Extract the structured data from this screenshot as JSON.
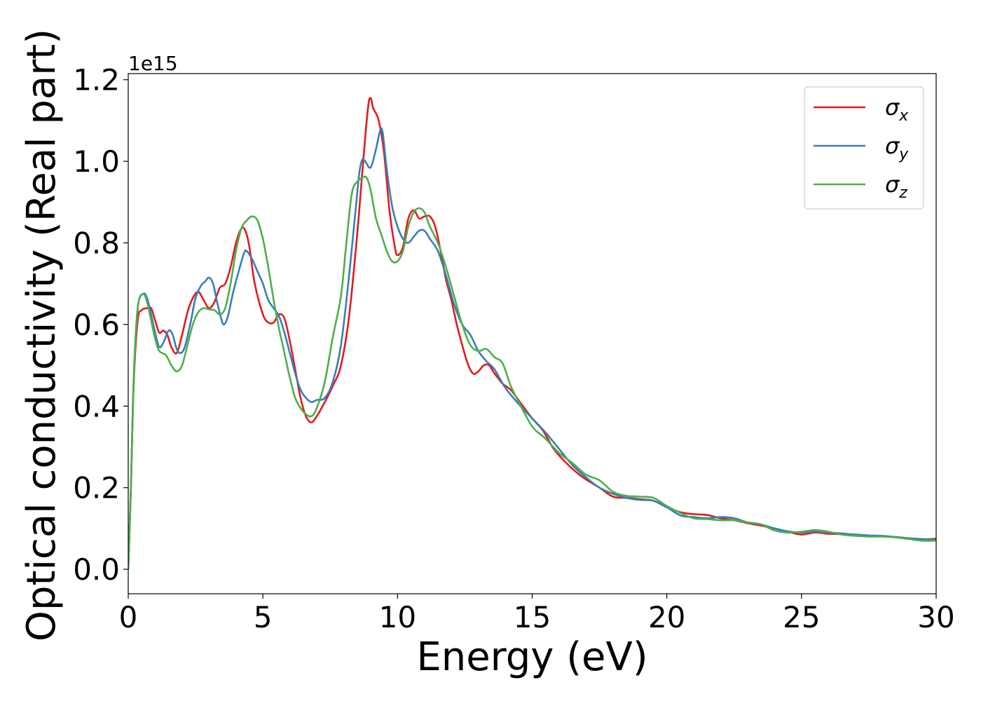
{
  "chart_data": {
    "type": "line",
    "xlabel": "Energy (eV)",
    "ylabel": "Optical conductivity (Real part)",
    "y_offset_text": "1e15",
    "xlim": [
      0,
      30
    ],
    "ylim": [
      -0.06,
      1.215
    ],
    "x_ticks": [
      0,
      5,
      10,
      15,
      20,
      25,
      30
    ],
    "x_tick_labels": [
      "0",
      "5",
      "10",
      "15",
      "20",
      "25",
      "30"
    ],
    "y_ticks": [
      0.0,
      0.2,
      0.4,
      0.6,
      0.8,
      1.0,
      1.2
    ],
    "y_tick_labels": [
      "0.0",
      "0.2",
      "0.4",
      "0.6",
      "0.8",
      "1.0",
      "1.2"
    ],
    "grid": false,
    "legend_position": "top-right",
    "series": [
      {
        "name": "σx",
        "symbol": "σ",
        "subscript": "x",
        "color": "#e41a1c",
        "points": [
          [
            0,
            0
          ],
          [
            0.1,
            0.2
          ],
          [
            0.2,
            0.45
          ],
          [
            0.35,
            0.61
          ],
          [
            0.5,
            0.635
          ],
          [
            0.7,
            0.64
          ],
          [
            0.85,
            0.64
          ],
          [
            1.0,
            0.61
          ],
          [
            1.15,
            0.58
          ],
          [
            1.3,
            0.585
          ],
          [
            1.45,
            0.575
          ],
          [
            1.6,
            0.545
          ],
          [
            1.8,
            0.53
          ],
          [
            2.0,
            0.575
          ],
          [
            2.2,
            0.63
          ],
          [
            2.4,
            0.665
          ],
          [
            2.6,
            0.68
          ],
          [
            2.8,
            0.66
          ],
          [
            3.0,
            0.64
          ],
          [
            3.2,
            0.655
          ],
          [
            3.4,
            0.69
          ],
          [
            3.6,
            0.7
          ],
          [
            3.8,
            0.74
          ],
          [
            4.0,
            0.8
          ],
          [
            4.2,
            0.835
          ],
          [
            4.35,
            0.83
          ],
          [
            4.5,
            0.79
          ],
          [
            4.7,
            0.7
          ],
          [
            5.0,
            0.625
          ],
          [
            5.2,
            0.605
          ],
          [
            5.4,
            0.605
          ],
          [
            5.6,
            0.625
          ],
          [
            5.8,
            0.615
          ],
          [
            6.0,
            0.56
          ],
          [
            6.2,
            0.49
          ],
          [
            6.4,
            0.42
          ],
          [
            6.6,
            0.375
          ],
          [
            6.8,
            0.36
          ],
          [
            7.0,
            0.375
          ],
          [
            7.3,
            0.41
          ],
          [
            7.6,
            0.45
          ],
          [
            7.9,
            0.5
          ],
          [
            8.2,
            0.62
          ],
          [
            8.5,
            0.82
          ],
          [
            8.7,
            0.98
          ],
          [
            8.9,
            1.13
          ],
          [
            9.0,
            1.155
          ],
          [
            9.1,
            1.13
          ],
          [
            9.3,
            1.1
          ],
          [
            9.5,
            1.02
          ],
          [
            9.7,
            0.88
          ],
          [
            9.9,
            0.79
          ],
          [
            10.0,
            0.77
          ],
          [
            10.2,
            0.79
          ],
          [
            10.4,
            0.86
          ],
          [
            10.6,
            0.88
          ],
          [
            10.8,
            0.86
          ],
          [
            11.0,
            0.865
          ],
          [
            11.2,
            0.865
          ],
          [
            11.4,
            0.84
          ],
          [
            11.6,
            0.78
          ],
          [
            11.8,
            0.71
          ],
          [
            12.0,
            0.66
          ],
          [
            12.2,
            0.6
          ],
          [
            12.4,
            0.55
          ],
          [
            12.6,
            0.505
          ],
          [
            12.8,
            0.48
          ],
          [
            13.0,
            0.485
          ],
          [
            13.2,
            0.5
          ],
          [
            13.4,
            0.5
          ],
          [
            13.6,
            0.48
          ],
          [
            13.9,
            0.455
          ],
          [
            14.2,
            0.44
          ],
          [
            14.6,
            0.405
          ],
          [
            15.0,
            0.37
          ],
          [
            15.4,
            0.34
          ],
          [
            15.8,
            0.295
          ],
          [
            16.2,
            0.265
          ],
          [
            16.6,
            0.24
          ],
          [
            17.0,
            0.22
          ],
          [
            17.5,
            0.2
          ],
          [
            18.0,
            0.178
          ],
          [
            18.5,
            0.175
          ],
          [
            19.0,
            0.172
          ],
          [
            19.5,
            0.168
          ],
          [
            20.0,
            0.152
          ],
          [
            20.5,
            0.14
          ],
          [
            21.0,
            0.135
          ],
          [
            21.5,
            0.133
          ],
          [
            22.0,
            0.125
          ],
          [
            22.5,
            0.12
          ],
          [
            23.0,
            0.113
          ],
          [
            23.5,
            0.107
          ],
          [
            24.0,
            0.1
          ],
          [
            24.5,
            0.092
          ],
          [
            25.0,
            0.085
          ],
          [
            25.5,
            0.09
          ],
          [
            26.0,
            0.087
          ],
          [
            26.5,
            0.086
          ],
          [
            27.0,
            0.085
          ],
          [
            27.5,
            0.082
          ],
          [
            28.0,
            0.081
          ],
          [
            28.5,
            0.079
          ],
          [
            29.0,
            0.076
          ],
          [
            29.5,
            0.073
          ],
          [
            30.0,
            0.075
          ]
        ]
      },
      {
        "name": "σy",
        "symbol": "σ",
        "subscript": "y",
        "color": "#377eb8",
        "points": [
          [
            0,
            0
          ],
          [
            0.1,
            0.2
          ],
          [
            0.2,
            0.46
          ],
          [
            0.35,
            0.64
          ],
          [
            0.55,
            0.675
          ],
          [
            0.7,
            0.665
          ],
          [
            0.85,
            0.625
          ],
          [
            1.0,
            0.58
          ],
          [
            1.15,
            0.545
          ],
          [
            1.3,
            0.555
          ],
          [
            1.5,
            0.585
          ],
          [
            1.65,
            0.575
          ],
          [
            1.8,
            0.54
          ],
          [
            1.95,
            0.53
          ],
          [
            2.1,
            0.545
          ],
          [
            2.3,
            0.6
          ],
          [
            2.5,
            0.665
          ],
          [
            2.7,
            0.695
          ],
          [
            2.85,
            0.705
          ],
          [
            3.0,
            0.715
          ],
          [
            3.15,
            0.7
          ],
          [
            3.3,
            0.655
          ],
          [
            3.45,
            0.615
          ],
          [
            3.55,
            0.6
          ],
          [
            3.7,
            0.62
          ],
          [
            3.9,
            0.68
          ],
          [
            4.1,
            0.73
          ],
          [
            4.3,
            0.775
          ],
          [
            4.4,
            0.78
          ],
          [
            4.6,
            0.76
          ],
          [
            4.8,
            0.73
          ],
          [
            5.0,
            0.7
          ],
          [
            5.2,
            0.66
          ],
          [
            5.4,
            0.64
          ],
          [
            5.6,
            0.62
          ],
          [
            5.8,
            0.58
          ],
          [
            6.0,
            0.53
          ],
          [
            6.2,
            0.48
          ],
          [
            6.4,
            0.44
          ],
          [
            6.6,
            0.42
          ],
          [
            6.8,
            0.41
          ],
          [
            7.0,
            0.415
          ],
          [
            7.3,
            0.42
          ],
          [
            7.6,
            0.46
          ],
          [
            7.9,
            0.55
          ],
          [
            8.2,
            0.72
          ],
          [
            8.5,
            0.92
          ],
          [
            8.6,
            0.98
          ],
          [
            8.7,
            1.005
          ],
          [
            8.8,
            1.0
          ],
          [
            9.0,
            0.985
          ],
          [
            9.2,
            1.03
          ],
          [
            9.35,
            1.075
          ],
          [
            9.45,
            1.07
          ],
          [
            9.6,
            0.98
          ],
          [
            9.8,
            0.89
          ],
          [
            10.0,
            0.84
          ],
          [
            10.2,
            0.81
          ],
          [
            10.4,
            0.8
          ],
          [
            10.6,
            0.815
          ],
          [
            10.8,
            0.83
          ],
          [
            11.0,
            0.83
          ],
          [
            11.2,
            0.81
          ],
          [
            11.5,
            0.78
          ],
          [
            11.8,
            0.72
          ],
          [
            12.1,
            0.65
          ],
          [
            12.4,
            0.6
          ],
          [
            12.7,
            0.575
          ],
          [
            13.0,
            0.535
          ],
          [
            13.3,
            0.51
          ],
          [
            13.6,
            0.49
          ],
          [
            14.0,
            0.445
          ],
          [
            14.5,
            0.405
          ],
          [
            15.0,
            0.37
          ],
          [
            15.5,
            0.335
          ],
          [
            16.0,
            0.295
          ],
          [
            16.5,
            0.255
          ],
          [
            17.0,
            0.225
          ],
          [
            17.5,
            0.2
          ],
          [
            18.0,
            0.185
          ],
          [
            18.5,
            0.175
          ],
          [
            19.0,
            0.17
          ],
          [
            19.5,
            0.168
          ],
          [
            20.0,
            0.152
          ],
          [
            20.5,
            0.132
          ],
          [
            21.0,
            0.128
          ],
          [
            21.5,
            0.125
          ],
          [
            22.0,
            0.128
          ],
          [
            22.5,
            0.125
          ],
          [
            23.0,
            0.115
          ],
          [
            23.5,
            0.11
          ],
          [
            24.0,
            0.1
          ],
          [
            24.5,
            0.093
          ],
          [
            25.0,
            0.09
          ],
          [
            25.5,
            0.092
          ],
          [
            26.0,
            0.09
          ],
          [
            26.5,
            0.088
          ],
          [
            27.0,
            0.085
          ],
          [
            27.5,
            0.083
          ],
          [
            28.0,
            0.082
          ],
          [
            28.5,
            0.079
          ],
          [
            29.0,
            0.076
          ],
          [
            29.5,
            0.074
          ],
          [
            30.0,
            0.072
          ]
        ]
      },
      {
        "name": "σz",
        "symbol": "σ",
        "subscript": "z",
        "color": "#4daf4a",
        "points": [
          [
            0,
            0
          ],
          [
            0.1,
            0.2
          ],
          [
            0.2,
            0.46
          ],
          [
            0.35,
            0.64
          ],
          [
            0.55,
            0.675
          ],
          [
            0.7,
            0.655
          ],
          [
            0.85,
            0.61
          ],
          [
            1.0,
            0.565
          ],
          [
            1.15,
            0.535
          ],
          [
            1.4,
            0.525
          ],
          [
            1.6,
            0.5
          ],
          [
            1.8,
            0.485
          ],
          [
            2.0,
            0.5
          ],
          [
            2.2,
            0.55
          ],
          [
            2.4,
            0.6
          ],
          [
            2.6,
            0.63
          ],
          [
            2.8,
            0.64
          ],
          [
            3.0,
            0.637
          ],
          [
            3.2,
            0.635
          ],
          [
            3.4,
            0.625
          ],
          [
            3.6,
            0.64
          ],
          [
            3.8,
            0.7
          ],
          [
            4.0,
            0.78
          ],
          [
            4.2,
            0.835
          ],
          [
            4.4,
            0.855
          ],
          [
            4.6,
            0.865
          ],
          [
            4.8,
            0.855
          ],
          [
            5.0,
            0.81
          ],
          [
            5.2,
            0.74
          ],
          [
            5.4,
            0.66
          ],
          [
            5.6,
            0.59
          ],
          [
            5.8,
            0.53
          ],
          [
            6.0,
            0.47
          ],
          [
            6.2,
            0.42
          ],
          [
            6.4,
            0.395
          ],
          [
            6.6,
            0.38
          ],
          [
            6.8,
            0.375
          ],
          [
            7.0,
            0.395
          ],
          [
            7.3,
            0.46
          ],
          [
            7.6,
            0.57
          ],
          [
            7.9,
            0.67
          ],
          [
            8.1,
            0.8
          ],
          [
            8.3,
            0.92
          ],
          [
            8.5,
            0.95
          ],
          [
            8.7,
            0.96
          ],
          [
            8.85,
            0.96
          ],
          [
            9.0,
            0.93
          ],
          [
            9.2,
            0.86
          ],
          [
            9.4,
            0.82
          ],
          [
            9.6,
            0.78
          ],
          [
            9.8,
            0.755
          ],
          [
            10.0,
            0.755
          ],
          [
            10.2,
            0.78
          ],
          [
            10.4,
            0.84
          ],
          [
            10.6,
            0.875
          ],
          [
            10.8,
            0.885
          ],
          [
            11.0,
            0.875
          ],
          [
            11.2,
            0.84
          ],
          [
            11.5,
            0.8
          ],
          [
            11.8,
            0.74
          ],
          [
            12.1,
            0.67
          ],
          [
            12.4,
            0.6
          ],
          [
            12.7,
            0.55
          ],
          [
            13.0,
            0.535
          ],
          [
            13.3,
            0.54
          ],
          [
            13.6,
            0.52
          ],
          [
            13.9,
            0.505
          ],
          [
            14.2,
            0.45
          ],
          [
            14.5,
            0.41
          ],
          [
            15.0,
            0.35
          ],
          [
            15.5,
            0.32
          ],
          [
            16.0,
            0.285
          ],
          [
            16.5,
            0.26
          ],
          [
            17.0,
            0.232
          ],
          [
            17.5,
            0.218
          ],
          [
            18.0,
            0.19
          ],
          [
            18.5,
            0.18
          ],
          [
            19.0,
            0.178
          ],
          [
            19.5,
            0.175
          ],
          [
            20.0,
            0.155
          ],
          [
            20.5,
            0.138
          ],
          [
            21.0,
            0.125
          ],
          [
            21.5,
            0.123
          ],
          [
            22.0,
            0.12
          ],
          [
            22.5,
            0.12
          ],
          [
            23.0,
            0.115
          ],
          [
            23.5,
            0.11
          ],
          [
            24.0,
            0.095
          ],
          [
            24.5,
            0.09
          ],
          [
            25.0,
            0.092
          ],
          [
            25.5,
            0.096
          ],
          [
            26.0,
            0.092
          ],
          [
            26.5,
            0.085
          ],
          [
            27.0,
            0.082
          ],
          [
            27.5,
            0.08
          ],
          [
            28.0,
            0.08
          ],
          [
            28.5,
            0.078
          ],
          [
            29.0,
            0.074
          ],
          [
            29.5,
            0.07
          ],
          [
            30.0,
            0.07
          ]
        ]
      }
    ]
  }
}
